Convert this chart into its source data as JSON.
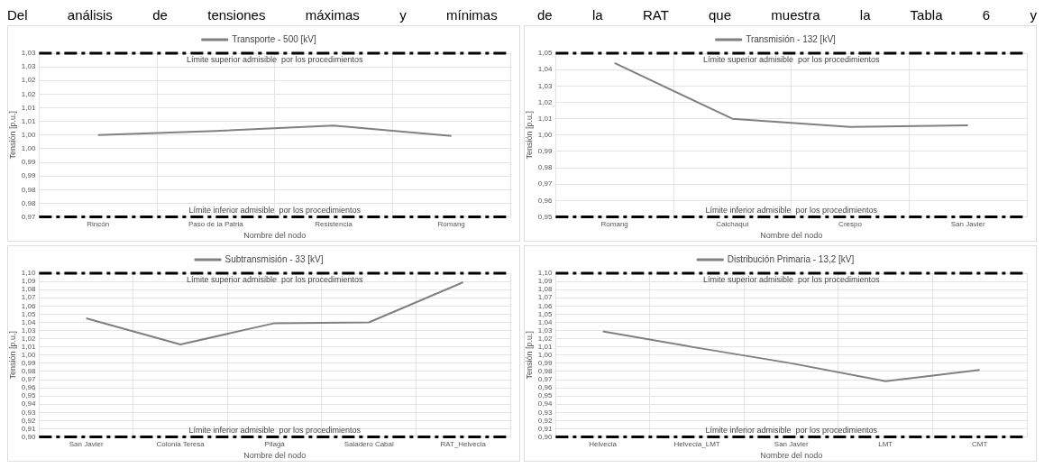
{
  "chart_data": [
    {
      "type": "line",
      "annotations": [
        "Del análisis de tensiones máximas y mínimas de la RAT que muestra la Tabla 6 y"
      ],
      "xlabel": "Nombre del nodo",
      "ylabel": "Tensión [p.u.]",
      "categories": [
        "Rincón",
        "Paso de la Patria",
        "Resistencia",
        "Romang"
      ],
      "series": [
        {
          "name": "Transporte - 500 [kV]",
          "color": "#808080",
          "values": [
            1.0,
            1.0015,
            1.0035,
            0.9997
          ]
        }
      ],
      "ylim": [
        0.97,
        1.03
      ],
      "yticks": [
        {
          "value": 0.97,
          "label": "0,97"
        },
        {
          "value": 0.975,
          "label": "0,98"
        },
        {
          "value": 0.98,
          "label": "0,98"
        },
        {
          "value": 0.985,
          "label": "0,99"
        },
        {
          "value": 0.99,
          "label": "0,99"
        },
        {
          "value": 0.995,
          "label": "1,00"
        },
        {
          "value": 1.0,
          "label": "1,00"
        },
        {
          "value": 1.005,
          "label": "1,01"
        },
        {
          "value": 1.01,
          "label": "1,01"
        },
        {
          "value": 1.015,
          "label": "1,02"
        },
        {
          "value": 1.02,
          "label": "1,02"
        },
        {
          "value": 1.025,
          "label": "1,03"
        },
        {
          "value": 1.03,
          "label": "1,03"
        }
      ],
      "ref_lines": [
        {
          "axis": "y",
          "value": 1.03,
          "label": "Límite superior admisible  por los procedimientos",
          "color": "#000000",
          "line_style": "dashed"
        },
        {
          "axis": "y",
          "value": 0.97,
          "label": "Límite inferior admisible  por los procedimientos",
          "color": "#000000",
          "line_style": "dashed"
        }
      ],
      "grid": true,
      "legend": "top",
      "marker": "none",
      "line_style": "solid"
    },
    {
      "type": "line",
      "xlabel": "Nombre del nodo",
      "ylabel": "Tensión [p.u.]",
      "categories": [
        "Romang",
        "Calchaquí",
        "Crespo",
        "San Javier"
      ],
      "series": [
        {
          "name": "Transmisión - 132 [kV]",
          "color": "#808080",
          "values": [
            1.044,
            1.01,
            1.005,
            1.006
          ]
        }
      ],
      "ylim": [
        0.95,
        1.05
      ],
      "yticks": [
        {
          "value": 0.95,
          "label": "0,95"
        },
        {
          "value": 0.96,
          "label": "0,96"
        },
        {
          "value": 0.97,
          "label": "0,97"
        },
        {
          "value": 0.98,
          "label": "0,98"
        },
        {
          "value": 0.99,
          "label": "0,99"
        },
        {
          "value": 1.0,
          "label": "1,00"
        },
        {
          "value": 1.01,
          "label": "1,01"
        },
        {
          "value": 1.02,
          "label": "1,02"
        },
        {
          "value": 1.03,
          "label": "1,03"
        },
        {
          "value": 1.04,
          "label": "1,04"
        },
        {
          "value": 1.05,
          "label": "1,05"
        }
      ],
      "ref_lines": [
        {
          "axis": "y",
          "value": 1.05,
          "label": "Límite superior admisible  por los procedimientos",
          "color": "#000000",
          "line_style": "dashed"
        },
        {
          "axis": "y",
          "value": 0.95,
          "label": "Límite inferior admisible  por los procedimientos",
          "color": "#000000",
          "line_style": "dashed"
        }
      ],
      "grid": true,
      "legend": "top",
      "marker": "none",
      "line_style": "solid"
    },
    {
      "type": "line",
      "xlabel": "Nombre del nodo",
      "ylabel": "Tensión [p.u.]",
      "categories": [
        "San Javier",
        "Colonia Teresa",
        "Pilagá",
        "Saladero Cabal",
        "RAT_Helvecia"
      ],
      "series": [
        {
          "name": "Subtransmisión - 33 [kV]",
          "color": "#808080",
          "values": [
            1.045,
            1.013,
            1.039,
            1.04,
            1.089
          ]
        }
      ],
      "ylim": [
        0.9,
        1.1
      ],
      "yticks": [
        {
          "value": 0.9,
          "label": "0,90"
        },
        {
          "value": 0.91,
          "label": "0,91"
        },
        {
          "value": 0.92,
          "label": "0,92"
        },
        {
          "value": 0.93,
          "label": "0,93"
        },
        {
          "value": 0.94,
          "label": "0,94"
        },
        {
          "value": 0.95,
          "label": "0,95"
        },
        {
          "value": 0.96,
          "label": "0,96"
        },
        {
          "value": 0.97,
          "label": "0,97"
        },
        {
          "value": 0.98,
          "label": "0,98"
        },
        {
          "value": 0.99,
          "label": "0,99"
        },
        {
          "value": 1.0,
          "label": "1,00"
        },
        {
          "value": 1.01,
          "label": "1,01"
        },
        {
          "value": 1.02,
          "label": "1,02"
        },
        {
          "value": 1.03,
          "label": "1,03"
        },
        {
          "value": 1.04,
          "label": "1,04"
        },
        {
          "value": 1.05,
          "label": "1,05"
        },
        {
          "value": 1.06,
          "label": "1,06"
        },
        {
          "value": 1.07,
          "label": "1,07"
        },
        {
          "value": 1.08,
          "label": "1,08"
        },
        {
          "value": 1.09,
          "label": "1,09"
        },
        {
          "value": 1.1,
          "label": "1,10"
        }
      ],
      "ref_lines": [
        {
          "axis": "y",
          "value": 1.1,
          "label": "Límite superior admisible  por los procedimientos",
          "color": "#000000",
          "line_style": "dashed"
        },
        {
          "axis": "y",
          "value": 0.9,
          "label": "Límite inferior admisible  por los procedimientos",
          "color": "#000000",
          "line_style": "dashed"
        }
      ],
      "grid": true,
      "legend": "top",
      "marker": "none",
      "line_style": "solid"
    },
    {
      "type": "line",
      "xlabel": "Nombre del nodo",
      "ylabel": "Tensión [p.u.]",
      "categories": [
        "Helvecia",
        "Helvecia_LMT",
        "San Javier",
        "LMT",
        "CMT"
      ],
      "series": [
        {
          "name": "Distribución Primaria - 13,2 [kV]",
          "color": "#808080",
          "values": [
            1.029,
            1.009,
            0.99,
            0.968,
            0.982
          ]
        }
      ],
      "ylim": [
        0.9,
        1.1
      ],
      "yticks": [
        {
          "value": 0.9,
          "label": "0,90"
        },
        {
          "value": 0.91,
          "label": "0,91"
        },
        {
          "value": 0.92,
          "label": "0,92"
        },
        {
          "value": 0.93,
          "label": "0,93"
        },
        {
          "value": 0.94,
          "label": "0,94"
        },
        {
          "value": 0.95,
          "label": "0,95"
        },
        {
          "value": 0.96,
          "label": "0,96"
        },
        {
          "value": 0.97,
          "label": "0,97"
        },
        {
          "value": 0.98,
          "label": "0,98"
        },
        {
          "value": 0.99,
          "label": "0,99"
        },
        {
          "value": 1.0,
          "label": "1,00"
        },
        {
          "value": 1.01,
          "label": "1,01"
        },
        {
          "value": 1.02,
          "label": "1,02"
        },
        {
          "value": 1.03,
          "label": "1,03"
        },
        {
          "value": 1.04,
          "label": "1,04"
        },
        {
          "value": 1.05,
          "label": "1,05"
        },
        {
          "value": 1.06,
          "label": "1,06"
        },
        {
          "value": 1.07,
          "label": "1,07"
        },
        {
          "value": 1.08,
          "label": "1,08"
        },
        {
          "value": 1.09,
          "label": "1,09"
        },
        {
          "value": 1.1,
          "label": "1,10"
        }
      ],
      "ref_lines": [
        {
          "axis": "y",
          "value": 1.1,
          "label": "Límite superior admisible  por los procedimientos",
          "color": "#000000",
          "line_style": "dashed"
        },
        {
          "axis": "y",
          "value": 0.9,
          "label": "Límite inferior admisible  por los procedimientos",
          "color": "#000000",
          "line_style": "dashed"
        }
      ],
      "grid": true,
      "legend": "top",
      "marker": "none",
      "line_style": "solid"
    }
  ]
}
